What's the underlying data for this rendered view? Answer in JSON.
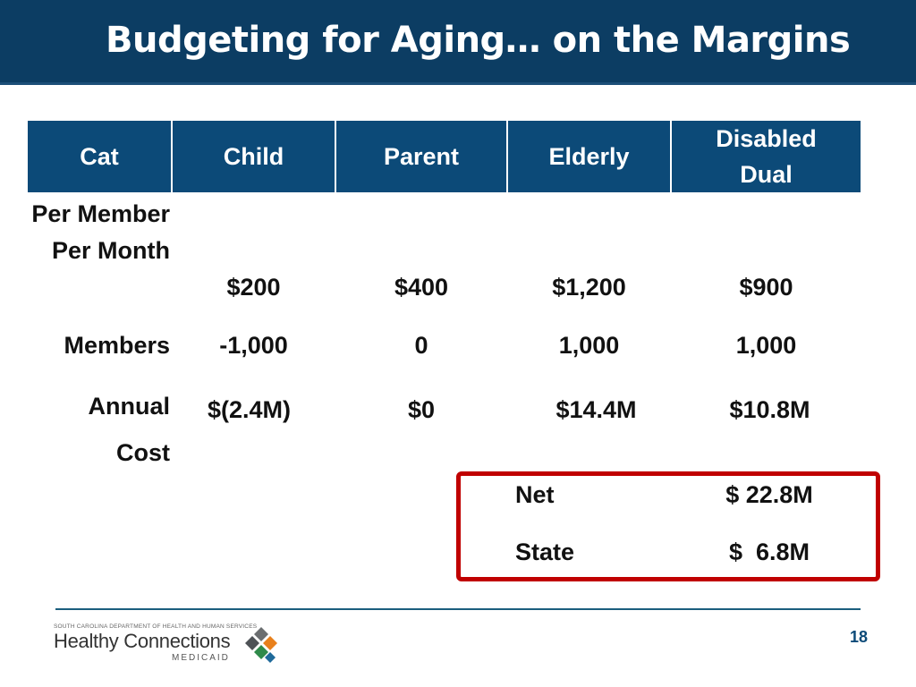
{
  "slide": {
    "title": "Budgeting for Aging… on the Margins",
    "page_number": "18"
  },
  "table": {
    "headers": [
      "Cat",
      "Child",
      "Parent",
      "Elderly",
      "Disabled Dual"
    ],
    "rows": [
      {
        "label": "Per Member Per Month",
        "values": [
          "$200",
          "$400",
          "$1,200",
          "$900"
        ]
      },
      {
        "label": "Members",
        "values": [
          "-1,000",
          "0",
          "1,000",
          "1,000"
        ]
      },
      {
        "label": "Annual Cost",
        "values": [
          "$(2.4M)",
          "$0",
          "$14.4M",
          "$10.8M"
        ]
      }
    ]
  },
  "summary": {
    "net_label": "Net",
    "net_value": "$ 22.8M",
    "state_label": "State",
    "state_value": "$  6.8M"
  },
  "footer": {
    "agency": "SOUTH CAROLINA DEPARTMENT OF HEALTH AND HUMAN SERVICES",
    "logo_name": "Healthy Connections",
    "logo_sub": "MEDICAID"
  },
  "colors": {
    "title_bar": "#0c3d63",
    "header_cell": "#0c4a78",
    "highlight_border": "#c00000"
  }
}
